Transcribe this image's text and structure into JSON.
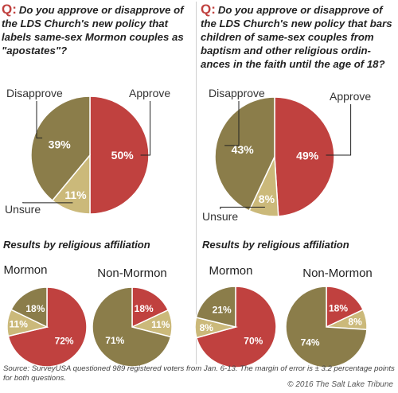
{
  "questions": {
    "left": {
      "prefix": "Q",
      "text": "Do you approve or disapprove of the LDS Church's new policy that labels same-sex Mormon couples as \"apostates\"?"
    },
    "right": {
      "prefix": "Q",
      "text": "Do you approve or disapprove of the LDS Church's new policy that bars children of same-sex couples from baptism and other religious ordin-ances in the faith until the age of 18?"
    }
  },
  "subheads": {
    "left": "Results by religious affiliation",
    "right": "Results by religious affiliation"
  },
  "colors": {
    "approve": "#c0413f",
    "disapprove": "#8b7d4a",
    "unsure": "#cbb97a"
  },
  "chart_data": [
    {
      "type": "pie",
      "title": "",
      "slices": [
        {
          "label": "Approve",
          "value": 50,
          "display": "50%",
          "color": "#c0413f"
        },
        {
          "label": "Unsure",
          "value": 11,
          "display": "11%",
          "color": "#cbb97a"
        },
        {
          "label": "Disapprove",
          "value": 39,
          "display": "39%",
          "color": "#8b7d4a"
        }
      ]
    },
    {
      "type": "pie",
      "title": "",
      "slices": [
        {
          "label": "Approve",
          "value": 49,
          "display": "49%",
          "color": "#c0413f"
        },
        {
          "label": "Unsure",
          "value": 8,
          "display": "8%",
          "color": "#cbb97a"
        },
        {
          "label": "Disapprove",
          "value": 43,
          "display": "43%",
          "color": "#8b7d4a"
        }
      ]
    },
    {
      "type": "pie",
      "title": "Mormon",
      "slices": [
        {
          "label": "Approve",
          "value": 72,
          "display": "72%",
          "color": "#c0413f"
        },
        {
          "label": "Unsure",
          "value": 11,
          "display": "11%",
          "color": "#cbb97a"
        },
        {
          "label": "Disapprove",
          "value": 18,
          "display": "18%",
          "color": "#8b7d4a"
        }
      ]
    },
    {
      "type": "pie",
      "title": "Non-Mormon",
      "slices": [
        {
          "label": "Approve",
          "value": 18,
          "display": "18%",
          "color": "#c0413f"
        },
        {
          "label": "Unsure",
          "value": 11,
          "display": "11%",
          "color": "#cbb97a"
        },
        {
          "label": "Disapprove",
          "value": 71,
          "display": "71%",
          "color": "#8b7d4a"
        }
      ]
    },
    {
      "type": "pie",
      "title": "Mormon",
      "slices": [
        {
          "label": "Approve",
          "value": 70,
          "display": "70%",
          "color": "#c0413f"
        },
        {
          "label": "Unsure",
          "value": 8,
          "display": "8%",
          "color": "#cbb97a"
        },
        {
          "label": "Disapprove",
          "value": 21,
          "display": "21%",
          "color": "#8b7d4a"
        }
      ]
    },
    {
      "type": "pie",
      "title": "Non-Mormon",
      "slices": [
        {
          "label": "Approve",
          "value": 18,
          "display": "18%",
          "color": "#c0413f"
        },
        {
          "label": "Unsure",
          "value": 8,
          "display": "8%",
          "color": "#cbb97a"
        },
        {
          "label": "Disapprove",
          "value": 74,
          "display": "74%",
          "color": "#8b7d4a"
        }
      ]
    }
  ],
  "footer": {
    "source": "Source: SurveyUSA questioned 989 registered voters  from Jan. 6-13. The margin of error is ± 3.2 percentage points for both questions.",
    "credit": "© 2016 The Salt Lake Tribune"
  }
}
